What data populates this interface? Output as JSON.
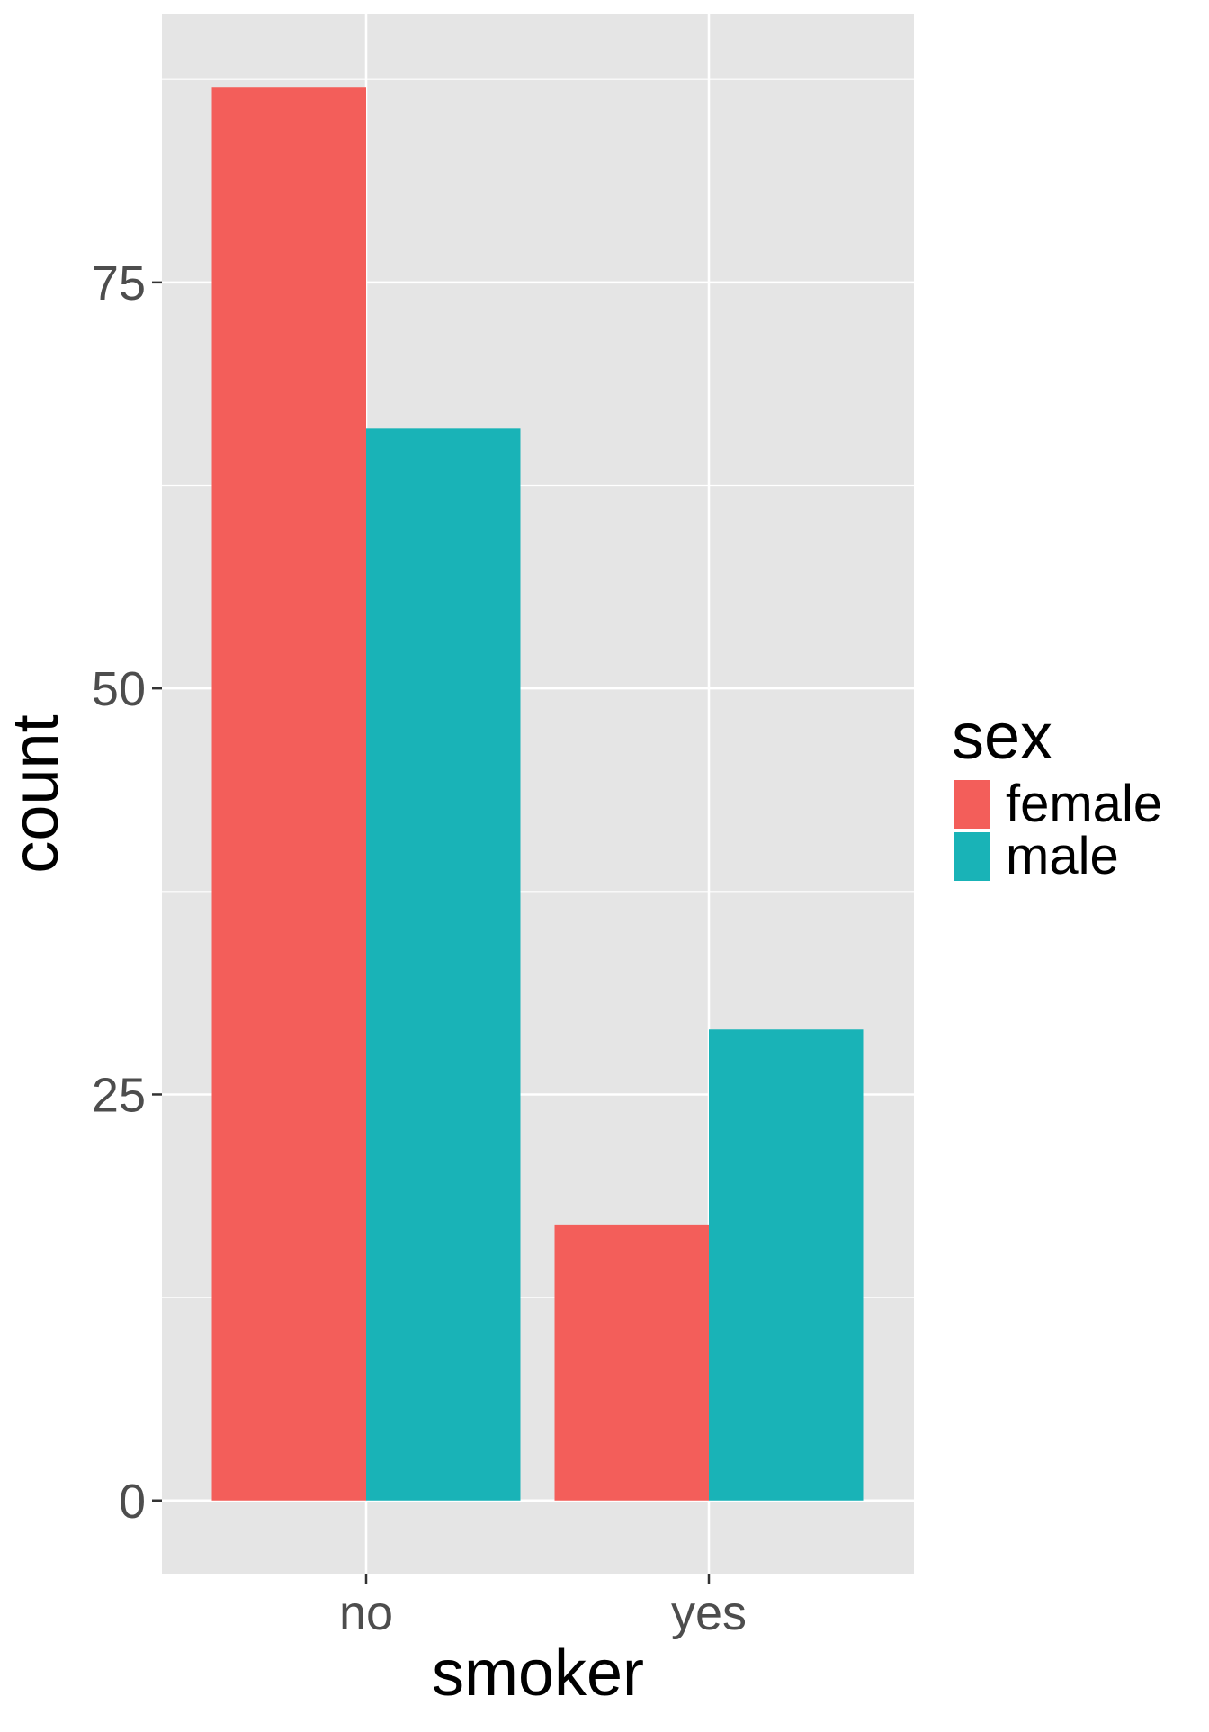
{
  "chart_data": {
    "type": "bar",
    "title": "",
    "xlabel": "smoker",
    "ylabel": "count",
    "categories": [
      "no",
      "yes"
    ],
    "series": [
      {
        "name": "female",
        "color": "#F35E5A",
        "values": [
          87,
          17
        ]
      },
      {
        "name": "male",
        "color": "#19B3B7",
        "values": [
          66,
          29
        ]
      }
    ],
    "ylim": [
      -4.5,
      91.5
    ],
    "yticks": [
      0,
      25,
      50,
      75
    ],
    "grid": true,
    "legend": {
      "title": "sex",
      "placement": "right",
      "entries": [
        "female",
        "male"
      ]
    },
    "colors": {
      "panel_background": "#E5E5E5",
      "grid": "#FFFFFF",
      "tick_text": "#4D4D4D"
    }
  }
}
